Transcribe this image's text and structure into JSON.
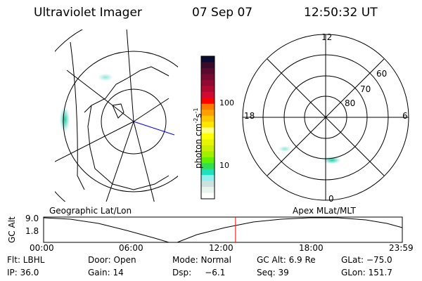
{
  "header": {
    "title": "Ultraviolet Imager",
    "date": "07 Sep 07",
    "time": "12:50:32 UT"
  },
  "colorbar": {
    "unit": "photon cm",
    "exp1": "-2",
    "s": "s",
    "exp2": "-1",
    "ticks": [
      "100",
      "10"
    ],
    "colors": [
      "#0a0a32",
      "#3a0a2a",
      "#5a0a2e",
      "#780a30",
      "#900a32",
      "#b00a30",
      "#d00a30",
      "#ff0000",
      "#ff7800",
      "#ffa000",
      "#ffc800",
      "#ffe600",
      "#ffff80",
      "#ffff00",
      "#e6f500",
      "#c8f000",
      "#a0f000",
      "#60f000",
      "#30e050",
      "#20e0c0",
      "#90f0f0",
      "#d0e0e0",
      "#e8f4ee",
      "#ffffff"
    ]
  },
  "polar": {
    "mlt": [
      "12",
      "18",
      "6",
      "0"
    ],
    "mlat": [
      "60",
      "70",
      "80"
    ]
  },
  "timeline": {
    "left_label": "Geographic Lat/Lon",
    "right_label": "Apex MLat/MLT",
    "ylabel": "GC Alt",
    "ymax": "9.0",
    "ymin": "1.8",
    "ticks": [
      "00:00",
      "06:00",
      "12:00",
      "18:00",
      "23:59"
    ],
    "current_fraction": 0.535
  },
  "info": {
    "row1": [
      "Flt: LBHL",
      "Door: Open",
      "Mode: Normal",
      "GC Alt: 6.9 Re",
      "GLat: −75.0"
    ],
    "row2": [
      "IP: 36.0",
      "Gain: 14",
      "Dsp:     −6.1",
      "Seq: 39",
      "GLon: 151.7"
    ]
  }
}
